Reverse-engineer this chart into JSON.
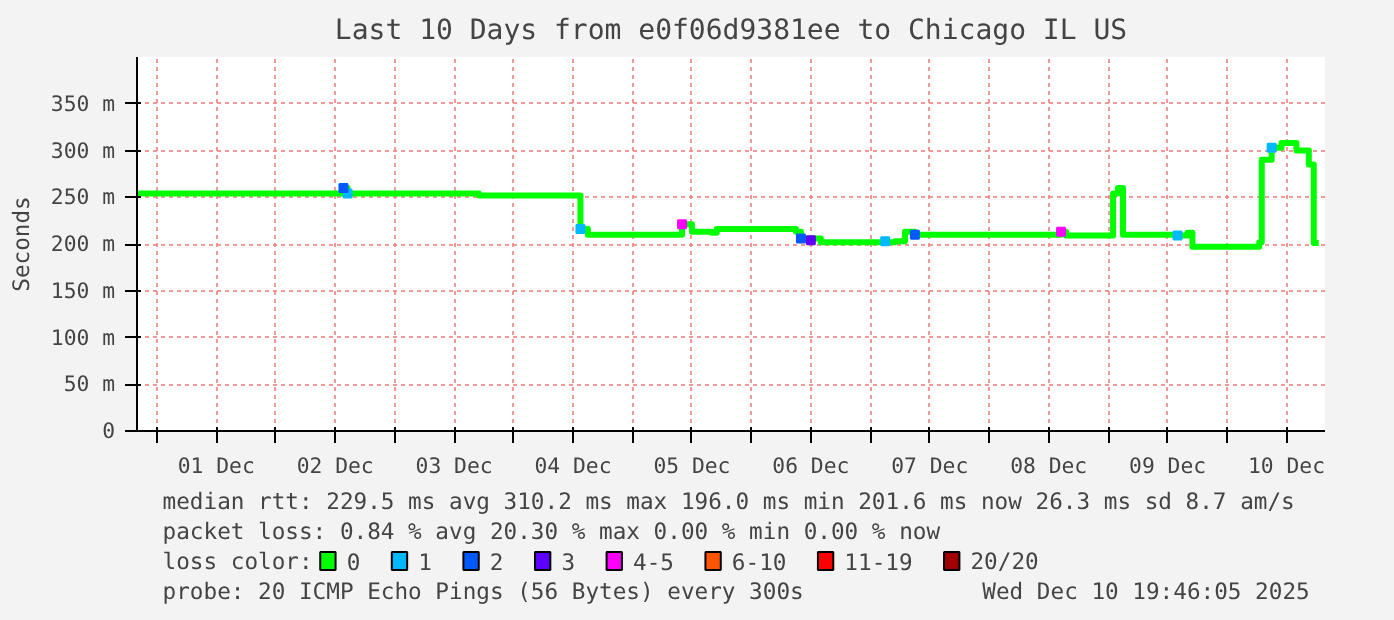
{
  "chart_data": {
    "type": "step",
    "title": "Last 10 Days from e0f06d9381ee to Chicago IL US",
    "ylabel": "Seconds",
    "legend_title": "loss color:",
    "legend": "bottom",
    "grid": true,
    "line_style": "solid",
    "xlim": [
      "2025-11-30T20:00",
      "2025-12-10T19:46"
    ],
    "xticks": [
      {
        "value": "2025-12-01T00:00",
        "label": null
      },
      {
        "value": "2025-12-01T12:00",
        "label": "01 Dec"
      },
      {
        "value": "2025-12-02T00:00",
        "label": null
      },
      {
        "value": "2025-12-02T12:00",
        "label": "02 Dec"
      },
      {
        "value": "2025-12-03T00:00",
        "label": null
      },
      {
        "value": "2025-12-03T12:00",
        "label": "03 Dec"
      },
      {
        "value": "2025-12-04T00:00",
        "label": null
      },
      {
        "value": "2025-12-04T12:00",
        "label": "04 Dec"
      },
      {
        "value": "2025-12-05T00:00",
        "label": null
      },
      {
        "value": "2025-12-05T12:00",
        "label": "05 Dec"
      },
      {
        "value": "2025-12-06T00:00",
        "label": null
      },
      {
        "value": "2025-12-06T12:00",
        "label": "06 Dec"
      },
      {
        "value": "2025-12-07T00:00",
        "label": null
      },
      {
        "value": "2025-12-07T12:00",
        "label": "07 Dec"
      },
      {
        "value": "2025-12-08T00:00",
        "label": null
      },
      {
        "value": "2025-12-08T12:00",
        "label": "08 Dec"
      },
      {
        "value": "2025-12-09T00:00",
        "label": null
      },
      {
        "value": "2025-12-09T12:00",
        "label": "09 Dec"
      },
      {
        "value": "2025-12-10T00:00",
        "label": null
      },
      {
        "value": "2025-12-10T12:00",
        "label": "10 Dec"
      }
    ],
    "ylim": [
      0,
      400
    ],
    "yticks": [
      0,
      {
        "value": 50,
        "label": "50 m"
      },
      {
        "value": 100,
        "label": "100 m"
      },
      {
        "value": 150,
        "label": "150 m"
      },
      {
        "value": 200,
        "label": "200 m"
      },
      {
        "value": 250,
        "label": "250 m"
      },
      {
        "value": 300,
        "label": "300 m"
      },
      {
        "value": 350,
        "label": "350 m"
      }
    ],
    "series": [
      {
        "name": "0",
        "color": "#00ff00",
        "x": [
          "2025-11-30T20:00",
          "2025-12-02T13:00",
          "2025-12-02T13:40",
          "2025-12-02T14:30",
          "2025-12-03T16:00",
          "2025-12-03T17:00",
          "2025-12-04T13:00",
          "2025-12-04T13:30",
          "2025-12-04T15:00",
          "2025-12-05T09:00",
          "2025-12-05T10:00",
          "2025-12-05T12:00",
          "2025-12-05T16:00",
          "2025-12-05T17:00",
          "2025-12-06T08:00",
          "2025-12-06T09:00",
          "2025-12-06T10:00",
          "2025-12-06T14:00",
          "2025-12-07T05:00",
          "2025-12-07T07:00",
          "2025-12-07T09:00",
          "2025-12-08T14:00",
          "2025-12-08T14:30",
          "2025-12-08T15:30",
          "2025-12-09T00:30",
          "2025-12-09T01:00",
          "2025-12-09T02:00",
          "2025-12-09T03:00",
          "2025-12-09T14:00",
          "2025-12-09T16:00",
          "2025-12-09T17:00",
          "2025-12-10T05:00",
          "2025-12-10T06:30",
          "2025-12-10T07:00",
          "2025-12-10T09:00",
          "2025-12-10T11:00",
          "2025-12-10T14:00",
          "2025-12-10T16:30",
          "2025-12-10T17:30",
          "2025-12-10T18:30"
        ],
        "values": [
          254,
          254,
          260,
          254,
          254,
          252,
          252,
          216,
          210,
          210,
          221,
          213,
          212,
          216,
          216,
          213,
          206,
          202,
          203,
          213,
          210,
          210,
          213,
          209,
          209,
          254,
          260,
          210,
          209,
          212,
          197,
          197,
          202,
          290,
          303,
          308,
          300,
          285,
          201,
          201
        ]
      },
      {
        "name": "1",
        "type": "scatter",
        "color": "#00b8ff",
        "x": [
          "2025-12-02T14:30",
          "2025-12-04T13:30",
          "2025-12-07T03:00",
          "2025-12-09T14:00",
          "2025-12-10T09:00"
        ],
        "values": [
          254,
          216,
          203,
          209,
          303
        ]
      },
      {
        "name": "2",
        "type": "scatter",
        "color": "#0059ff",
        "x": [
          "2025-12-02T13:40",
          "2025-12-06T10:00",
          "2025-12-07T09:00"
        ],
        "values": [
          260,
          206,
          210
        ]
      },
      {
        "name": "3",
        "type": "scatter",
        "color": "#5e00ff",
        "x": [
          "2025-12-06T12:00"
        ],
        "values": [
          204
        ]
      },
      {
        "name": "4-5",
        "type": "scatter",
        "color": "#ff00ff",
        "x": [
          "2025-12-05T10:00",
          "2025-12-08T14:30"
        ],
        "values": [
          221,
          213
        ]
      },
      {
        "name": "6-10",
        "type": "scatter",
        "color": "#ff5500"
      },
      {
        "name": "11-19",
        "type": "scatter",
        "color": "#ff0000"
      },
      {
        "name": "20/20",
        "type": "scatter",
        "color": "#a10000"
      }
    ],
    "annotations": [
      "median rtt:  229.5 ms avg  310.2 ms max  196.0 ms min  201.6 ms now  26.3 ms sd  8.7   am/s",
      "packet loss: 0.84 % avg  20.30 % max  0.00 % min  0.00 % now",
      "probe:       20 ICMP Echo Pings (56 Bytes) every 300s",
      "Wed Dec 10 19:46:05 2025"
    ]
  }
}
